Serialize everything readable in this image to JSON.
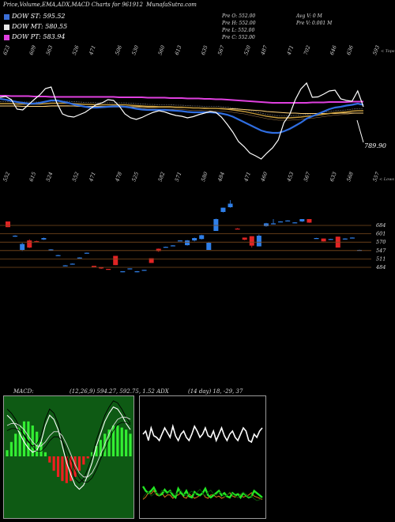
{
  "header": {
    "title": "Price,Volume,EMA,ADX,MACD Charts for 961912",
    "site": "MunafaSutra.com"
  },
  "legend": [
    {
      "label": "DOW ST: 595.52",
      "color": "#3b6fd8"
    },
    {
      "label": "DOW MT: 580.55",
      "color": "#e8e8e8"
    },
    {
      "label": "DOW PT: 583.94",
      "color": "#e040e0"
    }
  ],
  "ohlc": {
    "open": "Pre   O: 552.00",
    "high": "Pre   H: 552.00",
    "low": "Pre   L: 552.00",
    "close": "Pre   C: 552.00",
    "avgv": "Avg V: 0   M",
    "prev": "Pre   V: 0.001 M"
  },
  "top_label": "< Tops",
  "low_label": "< Lows",
  "last_price": "789.90",
  "macd_text": "MACD:",
  "macd_values": "(12,26,9) 594.27, 592.75, 1.52 ADX",
  "adx_values": "(14 day) 18, -29, 37",
  "chart_data": [
    {
      "type": "line",
      "name": "price-ema",
      "top_labels": [
        "623",
        "609",
        "563",
        "526",
        "471",
        "506",
        "530",
        "560",
        "613",
        "635",
        "567",
        "520",
        "487",
        "471",
        "702",
        "646",
        "636",
        "593"
      ],
      "low_labels": [
        "552",
        "615",
        "524",
        "552",
        "471",
        "478",
        "525",
        "582",
        "571",
        "580",
        "484",
        "471",
        "460",
        "453",
        "567",
        "633",
        "568",
        "557"
      ],
      "series": [
        {
          "name": "price",
          "values": [
            604,
            606,
            598,
            574,
            572,
            585,
            598,
            610,
            626,
            630,
            590,
            562,
            556,
            554,
            560,
            566,
            576,
            586,
            590,
            598,
            596,
            582,
            562,
            552,
            548,
            553,
            560,
            566,
            570,
            567,
            562,
            558,
            556,
            552,
            555,
            560,
            564,
            568,
            566,
            554,
            536,
            516,
            492,
            479,
            463,
            456,
            448,
            463,
            476,
            496,
            540,
            560,
            598,
            625,
            640,
            604,
            605,
            612,
            620,
            622,
            600,
            596,
            594,
            620,
            580
          ]
        },
        {
          "name": "ema_short",
          "values": [
            600,
            598,
            595,
            592,
            590,
            588,
            588,
            590,
            593,
            596,
            596,
            593,
            590,
            586,
            583,
            580,
            578,
            578,
            579,
            580,
            581,
            581,
            580,
            578,
            575,
            573,
            572,
            572,
            572,
            572,
            571,
            570,
            569,
            567,
            566,
            566,
            566,
            566,
            565,
            563,
            560,
            555,
            548,
            541,
            534,
            527,
            520,
            516,
            514,
            514,
            518,
            524,
            532,
            540,
            550,
            556,
            562,
            568,
            574,
            578,
            580,
            583,
            585,
            588,
            585
          ]
        },
        {
          "name": "ema_mid",
          "values": [
            588,
            588,
            588,
            587,
            587,
            587,
            587,
            587,
            588,
            589,
            589,
            589,
            589,
            588,
            587,
            586,
            586,
            585,
            585,
            585,
            585,
            585,
            585,
            584,
            583,
            582,
            581,
            581,
            580,
            580,
            580,
            579,
            579,
            578,
            577,
            577,
            576,
            576,
            576,
            575,
            574,
            572,
            570,
            568,
            565,
            562,
            559,
            556,
            554,
            552,
            552,
            552,
            553,
            554,
            556,
            557,
            559,
            561,
            563,
            565,
            566,
            567,
            569,
            570,
            570
          ]
        },
        {
          "name": "ema_long",
          "values": [
            582,
            582,
            582,
            582,
            581,
            581,
            581,
            581,
            581,
            582,
            582,
            582,
            582,
            582,
            581,
            581,
            581,
            581,
            581,
            581,
            581,
            581,
            581,
            580,
            580,
            580,
            579,
            579,
            579,
            579,
            579,
            578,
            578,
            578,
            577,
            577,
            577,
            576,
            576,
            576,
            575,
            575,
            574,
            573,
            572,
            571,
            570,
            568,
            567,
            566,
            565,
            564,
            564,
            563,
            563,
            563,
            563,
            563,
            563,
            563,
            564,
            564,
            564,
            564,
            564
          ]
        },
        {
          "name": "dow_pt",
          "values": [
            608,
            608,
            607,
            607,
            607,
            607,
            606,
            606,
            606,
            605,
            605,
            605,
            605,
            605,
            605,
            605,
            605,
            605,
            605,
            605,
            605,
            604,
            604,
            604,
            604,
            604,
            603,
            603,
            603,
            603,
            602,
            602,
            602,
            601,
            601,
            601,
            600,
            600,
            599,
            599,
            598,
            597,
            596,
            595,
            594,
            593,
            592,
            591,
            590,
            590,
            590,
            590,
            590,
            590,
            590,
            591,
            591,
            591,
            592,
            592,
            592,
            592,
            593,
            593,
            593
          ]
        }
      ]
    },
    {
      "type": "candlestick",
      "name": "volume-candles",
      "price_levels": [
        "684",
        "601",
        "570",
        "547",
        "511",
        "484"
      ],
      "candles": [
        {
          "o": 680,
          "c": 656,
          "h": 680,
          "l": 656,
          "up": false
        },
        {
          "o": 620,
          "c": 617,
          "h": 622,
          "l": 615,
          "up": true
        },
        {
          "o": 585,
          "c": 560,
          "h": 590,
          "l": 555,
          "up": true
        },
        {
          "o": 600,
          "c": 570,
          "h": 605,
          "l": 568,
          "up": false
        },
        {
          "o": 597,
          "c": 595,
          "h": 599,
          "l": 594,
          "up": false
        },
        {
          "o": 610,
          "c": 604,
          "h": 612,
          "l": 602,
          "up": true
        },
        {
          "o": 562,
          "c": 560,
          "h": 563,
          "l": 559,
          "up": true
        },
        {
          "o": 538,
          "c": 536,
          "h": 539,
          "l": 535,
          "up": true
        },
        {
          "o": 495,
          "c": 493,
          "h": 496,
          "l": 492,
          "up": true
        },
        {
          "o": 502,
          "c": 500,
          "h": 503,
          "l": 499,
          "up": true
        },
        {
          "o": 528,
          "c": 526,
          "h": 529,
          "l": 525,
          "up": true
        },
        {
          "o": 548,
          "c": 546,
          "h": 549,
          "l": 545,
          "up": true
        },
        {
          "o": 493,
          "c": 488,
          "h": 493,
          "l": 488,
          "up": false
        },
        {
          "o": 488,
          "c": 482,
          "h": 488,
          "l": 480,
          "up": false
        },
        {
          "o": 480,
          "c": 478,
          "h": 480,
          "l": 478,
          "up": false
        },
        {
          "o": 535,
          "c": 496,
          "h": 535,
          "l": 496,
          "up": false
        },
        {
          "o": 470,
          "c": 468,
          "h": 470,
          "l": 466,
          "up": true
        },
        {
          "o": 482,
          "c": 480,
          "h": 482,
          "l": 480,
          "up": true
        },
        {
          "o": 470,
          "c": 468,
          "h": 471,
          "l": 466,
          "up": true
        },
        {
          "o": 476,
          "c": 473,
          "h": 476,
          "l": 473,
          "up": true
        },
        {
          "o": 525,
          "c": 505,
          "h": 525,
          "l": 505,
          "up": false
        },
        {
          "o": 565,
          "c": 555,
          "h": 566,
          "l": 552,
          "up": false
        },
        {
          "o": 573,
          "c": 571,
          "h": 574,
          "l": 570,
          "up": true
        },
        {
          "o": 579,
          "c": 577,
          "h": 580,
          "l": 576,
          "up": true
        },
        {
          "o": 600,
          "c": 600,
          "h": 601,
          "l": 599,
          "up": true
        },
        {
          "o": 580,
          "c": 600,
          "h": 602,
          "l": 578,
          "up": true
        },
        {
          "o": 610,
          "c": 600,
          "h": 612,
          "l": 596,
          "up": true
        },
        {
          "o": 622,
          "c": 606,
          "h": 624,
          "l": 604,
          "up": true
        },
        {
          "o": 560,
          "c": 590,
          "h": 594,
          "l": 560,
          "up": true
        },
        {
          "o": 640,
          "c": 690,
          "h": 692,
          "l": 640,
          "up": true
        },
        {
          "o": 720,
          "c": 738,
          "h": 738,
          "l": 718,
          "up": true
        },
        {
          "o": 740,
          "c": 755,
          "h": 770,
          "l": 738,
          "up": true
        },
        {
          "o": 650,
          "c": 650,
          "h": 652,
          "l": 648,
          "up": false
        },
        {
          "o": 612,
          "c": 603,
          "h": 612,
          "l": 601,
          "up": false
        },
        {
          "o": 618,
          "c": 578,
          "h": 618,
          "l": 570,
          "up": false
        },
        {
          "o": 575,
          "c": 620,
          "h": 625,
          "l": 575,
          "up": true
        },
        {
          "o": 660,
          "c": 672,
          "h": 674,
          "l": 658,
          "up": true
        },
        {
          "o": 670,
          "c": 672,
          "h": 690,
          "l": 668,
          "up": true
        },
        {
          "o": 678,
          "c": 680,
          "h": 681,
          "l": 678,
          "up": true
        },
        {
          "o": 682,
          "c": 684,
          "h": 685,
          "l": 681,
          "up": true
        },
        {
          "o": 674,
          "c": 676,
          "h": 677,
          "l": 673,
          "up": true
        },
        {
          "o": 680,
          "c": 690,
          "h": 690,
          "l": 678,
          "up": true
        },
        {
          "o": 690,
          "c": 675,
          "h": 690,
          "l": 674,
          "up": false
        },
        {
          "o": 610,
          "c": 610,
          "h": 611,
          "l": 609,
          "up": true
        },
        {
          "o": 608,
          "c": 596,
          "h": 608,
          "l": 596,
          "up": false
        },
        {
          "o": 606,
          "c": 604,
          "h": 607,
          "l": 603,
          "up": true
        },
        {
          "o": 616,
          "c": 570,
          "h": 616,
          "l": 570,
          "up": false
        },
        {
          "o": 608,
          "c": 606,
          "h": 609,
          "l": 604,
          "up": true
        },
        {
          "o": 612,
          "c": 611,
          "h": 613,
          "l": 610,
          "up": true
        },
        {
          "o": 560,
          "c": 558,
          "h": 561,
          "l": 557,
          "up": true
        }
      ]
    },
    {
      "type": "bar",
      "name": "macd",
      "histogram": [
        6,
        14,
        22,
        30,
        34,
        34,
        30,
        24,
        14,
        4,
        -6,
        -14,
        -20,
        -24,
        -26,
        -24,
        -20,
        -14,
        -8,
        -2,
        4,
        10,
        16,
        22,
        26,
        30,
        30,
        28,
        26,
        22
      ],
      "macd": [
        40,
        36,
        30,
        22,
        14,
        8,
        4,
        6,
        14,
        30,
        40,
        36,
        26,
        10,
        -6,
        -18,
        -28,
        -32,
        -28,
        -18,
        -6,
        10,
        22,
        34,
        42,
        48,
        46,
        40,
        32,
        26
      ],
      "signal": [
        30,
        32,
        32,
        30,
        26,
        20,
        14,
        10,
        10,
        14,
        20,
        24,
        24,
        20,
        12,
        2,
        -8,
        -16,
        -20,
        -20,
        -16,
        -8,
        2,
        12,
        22,
        30,
        36,
        38,
        38,
        36
      ]
    },
    {
      "type": "line",
      "name": "adx",
      "series": [
        {
          "name": "adx",
          "values": [
            18,
            22,
            24,
            20,
            22,
            24,
            21,
            26,
            24,
            22,
            25,
            23,
            21,
            24,
            26,
            22,
            20,
            23,
            25,
            22,
            24,
            27,
            23,
            20,
            24,
            26,
            22,
            21,
            24,
            23,
            19,
            21,
            24,
            22,
            20,
            18,
            22,
            24,
            21,
            19,
            20,
            17,
            15,
            16,
            18
          ]
        },
        {
          "name": "plus_di",
          "values": [
            30,
            26,
            24,
            26,
            29,
            24,
            22,
            23,
            27,
            24,
            26,
            22,
            20,
            28,
            24,
            22,
            26,
            21,
            20,
            25,
            23,
            22,
            24,
            28,
            22,
            20,
            22,
            24,
            26,
            22,
            24,
            21,
            20,
            24,
            22,
            23,
            20,
            24,
            22,
            20,
            21,
            26,
            24,
            22,
            20
          ]
        },
        {
          "name": "minus_di",
          "values": [
            14,
            16,
            20,
            19,
            22,
            18,
            17,
            20,
            16,
            18,
            18,
            15,
            17,
            18,
            20,
            16,
            15,
            19,
            17,
            15,
            16,
            18,
            20,
            16,
            15,
            18,
            18,
            16,
            17,
            15,
            16,
            18,
            20,
            17,
            16,
            19,
            18,
            16,
            17,
            18,
            20,
            17,
            16,
            15,
            14
          ]
        },
        {
          "name": "di_spread",
          "values": [
            26,
            28,
            22,
            30,
            25,
            24,
            22,
            26,
            30,
            27,
            24,
            31,
            25,
            22,
            26,
            28,
            24,
            22,
            26,
            31,
            28,
            24,
            26,
            30,
            25,
            24,
            28,
            22,
            26,
            30,
            25,
            22,
            26,
            28,
            24,
            22,
            26,
            30,
            28,
            22,
            21,
            26,
            24,
            28,
            30
          ]
        }
      ]
    }
  ]
}
